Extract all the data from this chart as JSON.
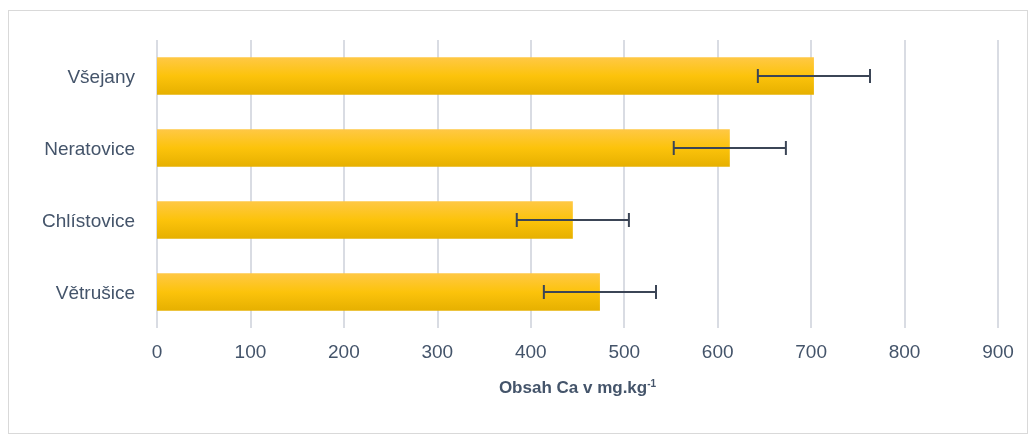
{
  "chart_data": {
    "type": "bar",
    "orientation": "horizontal",
    "xlabel": "Obsah Ca v mg.kg$^{-1}$",
    "categories": [
      "Všejany",
      "Neratovice",
      "Chlístovice",
      "Větrušice"
    ],
    "values": [
      703,
      613,
      445,
      474
    ],
    "errors": [
      60,
      60,
      60,
      60
    ],
    "color": "#fcc30b",
    "xlim": [
      0,
      900
    ],
    "xticks": [
      0,
      100,
      200,
      300,
      400,
      500,
      600,
      700,
      800,
      900
    ],
    "grid": "x"
  }
}
